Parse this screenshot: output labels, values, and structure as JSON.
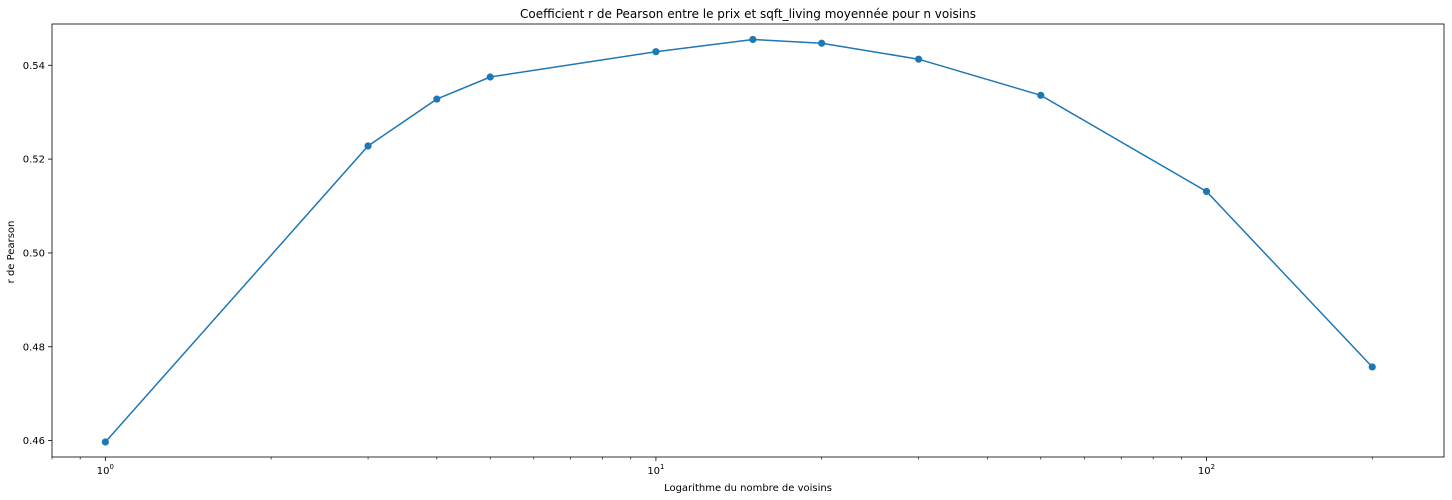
{
  "chart_data": {
    "type": "line",
    "title": "Coefficient r de Pearson entre le prix et sqft_living moyennée pour n voisins",
    "xlabel": "Logarithme du nombre de voisins",
    "ylabel": "r de Pearson",
    "xscale": "log",
    "xlim": [
      0.8,
      270
    ],
    "ylim": [
      0.4565,
      0.5488
    ],
    "grid": false,
    "color": "#1f77b4",
    "marker": "circle",
    "x_ticks": [
      {
        "value": 1,
        "base": "10",
        "exp": "0"
      },
      {
        "value": 10,
        "base": "10",
        "exp": "1"
      },
      {
        "value": 100,
        "base": "10",
        "exp": "2"
      }
    ],
    "y_ticks": [
      {
        "value": 0.46,
        "label": "0.46"
      },
      {
        "value": 0.48,
        "label": "0.48"
      },
      {
        "value": 0.5,
        "label": "0.50"
      },
      {
        "value": 0.52,
        "label": "0.52"
      },
      {
        "value": 0.54,
        "label": "0.54"
      }
    ],
    "x": [
      1,
      3,
      4,
      5,
      10,
      15,
      20,
      30,
      50,
      100,
      200
    ],
    "y": [
      0.4597,
      0.5228,
      0.5328,
      0.5375,
      0.5429,
      0.5455,
      0.5447,
      0.5413,
      0.5336,
      0.5131,
      0.4757
    ]
  }
}
